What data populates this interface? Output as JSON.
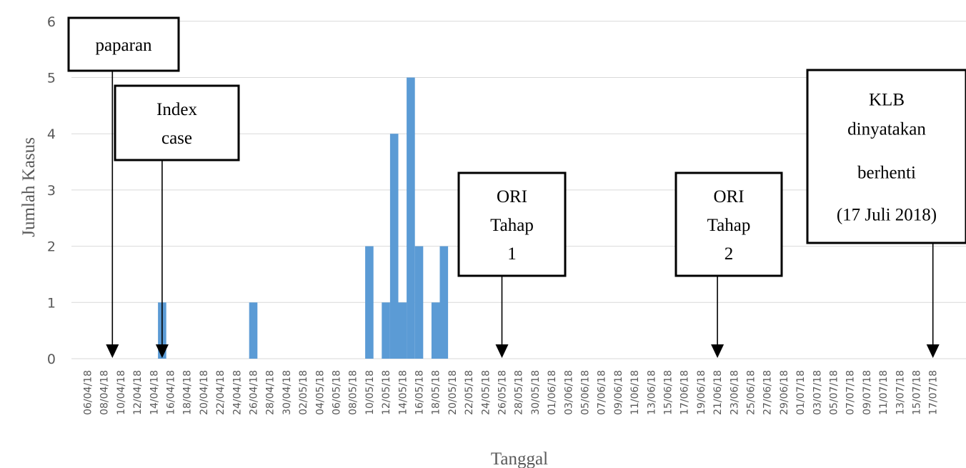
{
  "chart_data": {
    "type": "bar",
    "title": "",
    "xlabel": "Tanggal",
    "ylabel": "Jumlah Kasus",
    "ylim": [
      0,
      6
    ],
    "yticks": [
      0,
      1,
      2,
      3,
      4,
      5,
      6
    ],
    "grid": true,
    "legend": "none",
    "bar_color": "#5b9bd5",
    "x_start": "06/04/18",
    "x_end": "17/07/18",
    "xtick_labels": [
      "06/04/18",
      "08/04/18",
      "10/04/18",
      "12/04/18",
      "14/04/18",
      "16/04/18",
      "18/04/18",
      "20/04/18",
      "22/04/18",
      "24/04/18",
      "26/04/18",
      "28/04/18",
      "30/04/18",
      "02/05/18",
      "04/05/18",
      "06/05/18",
      "08/05/18",
      "10/05/18",
      "12/05/18",
      "14/05/18",
      "16/05/18",
      "18/05/18",
      "20/05/18",
      "22/05/18",
      "24/05/18",
      "26/05/18",
      "28/05/18",
      "30/05/18",
      "01/06/18",
      "03/06/18",
      "05/06/18",
      "07/06/18",
      "09/06/18",
      "11/06/18",
      "13/06/18",
      "15/06/18",
      "17/06/18",
      "19/06/18",
      "21/06/18",
      "23/06/18",
      "25/06/18",
      "27/06/18",
      "29/06/18",
      "01/07/18",
      "03/07/18",
      "05/07/18",
      "07/07/18",
      "09/07/18",
      "11/07/18",
      "13/07/18",
      "15/07/18",
      "17/07/18"
    ],
    "data": [
      {
        "date": "15/04/18",
        "value": 1
      },
      {
        "date": "26/04/18",
        "value": 1
      },
      {
        "date": "10/05/18",
        "value": 2
      },
      {
        "date": "12/05/18",
        "value": 1
      },
      {
        "date": "13/05/18",
        "value": 4
      },
      {
        "date": "14/05/18",
        "value": 1
      },
      {
        "date": "15/05/18",
        "value": 5
      },
      {
        "date": "16/05/18",
        "value": 2
      },
      {
        "date": "18/05/18",
        "value": 1
      },
      {
        "date": "19/05/18",
        "value": 2
      }
    ],
    "annotations": [
      {
        "lines": [
          "paparan"
        ],
        "date": "09/04/18"
      },
      {
        "lines": [
          "Index",
          "case"
        ],
        "date": "15/04/18"
      },
      {
        "lines": [
          "ORI",
          "Tahap",
          "1"
        ],
        "date": "26/05/18"
      },
      {
        "lines": [
          "ORI",
          "Tahap",
          "2"
        ],
        "date": "21/06/18"
      },
      {
        "lines": [
          "KLB",
          "dinyatakan",
          "berhenti",
          "(17 Juli 2018)"
        ],
        "date": "17/07/18"
      }
    ]
  }
}
